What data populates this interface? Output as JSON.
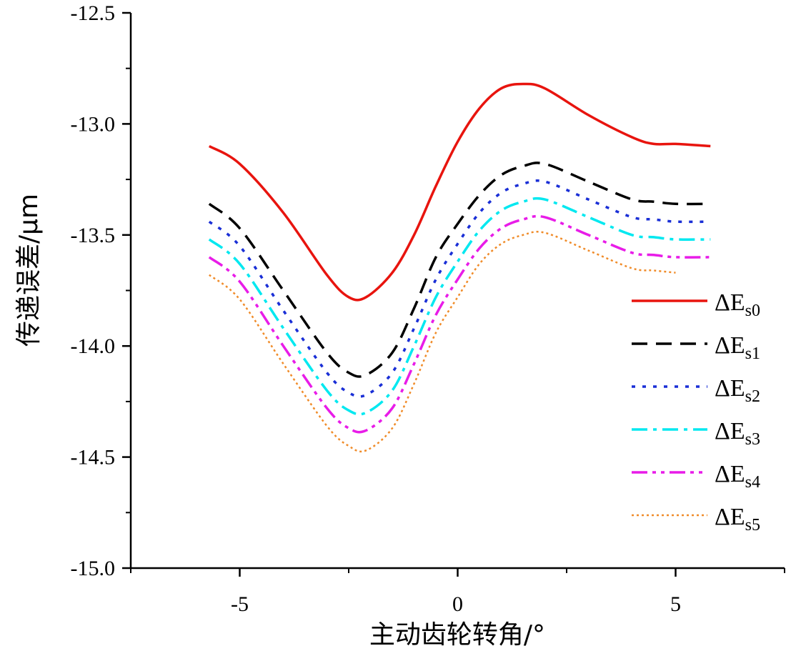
{
  "chart_data": {
    "type": "line",
    "xlabel": "主动齿轮转角/°",
    "ylabel": "传递误差/μm",
    "xlim": [
      -7.5,
      7.5
    ],
    "ylim": [
      -15.0,
      -12.5
    ],
    "x_ticks": [
      {
        "value": -5,
        "label": "-5"
      },
      {
        "value": 0,
        "label": "0"
      },
      {
        "value": 5,
        "label": "5"
      }
    ],
    "y_ticks": [
      {
        "value": -12.5,
        "label": "-12.5"
      },
      {
        "value": -13.0,
        "label": "-13.0"
      },
      {
        "value": -13.5,
        "label": "-13.5"
      },
      {
        "value": -14.0,
        "label": "-14.0"
      },
      {
        "value": -14.5,
        "label": "-14.5"
      },
      {
        "value": -15.0,
        "label": "-15.0"
      }
    ],
    "grid": false,
    "legend_position": "right",
    "x": [
      -5.7,
      -5.0,
      -4.0,
      -3.0,
      -2.5,
      -2.1,
      -1.5,
      -1.0,
      -0.5,
      0.0,
      0.5,
      1.0,
      1.5,
      2.0,
      3.0,
      4.0,
      4.5,
      5.0,
      5.8
    ],
    "series": [
      {
        "name": "ΔE",
        "subscript": "s0",
        "color": "#e8140e",
        "dash": "solid",
        "values": [
          -13.1,
          -13.18,
          -13.4,
          -13.68,
          -13.78,
          -13.78,
          -13.67,
          -13.5,
          -13.28,
          -13.08,
          -12.93,
          -12.84,
          -12.82,
          -12.84,
          -12.96,
          -13.06,
          -13.09,
          -13.09,
          -13.1
        ]
      },
      {
        "name": "ΔE",
        "subscript": "s1",
        "color": "#000000",
        "dash": "dash",
        "values": [
          -13.36,
          -13.47,
          -13.75,
          -14.03,
          -14.12,
          -14.13,
          -14.03,
          -13.83,
          -13.6,
          -13.45,
          -13.32,
          -13.23,
          -13.19,
          -13.18,
          -13.26,
          -13.34,
          -13.35,
          -13.36,
          -13.36
        ]
      },
      {
        "name": "ΔE",
        "subscript": "s2",
        "color": "#1a2fd6",
        "dash": "dot",
        "values": [
          -13.44,
          -13.55,
          -13.84,
          -14.12,
          -14.21,
          -14.22,
          -14.12,
          -13.92,
          -13.7,
          -13.54,
          -13.4,
          -13.31,
          -13.27,
          -13.26,
          -13.34,
          -13.42,
          -13.43,
          -13.44,
          -13.44
        ]
      },
      {
        "name": "ΔE",
        "subscript": "s3",
        "color": "#00e8f0",
        "dash": "dashdot",
        "values": [
          -13.52,
          -13.63,
          -13.92,
          -14.2,
          -14.29,
          -14.3,
          -14.2,
          -14.0,
          -13.78,
          -13.62,
          -13.48,
          -13.39,
          -13.35,
          -13.34,
          -13.42,
          -13.5,
          -13.51,
          -13.52,
          -13.52
        ]
      },
      {
        "name": "ΔE",
        "subscript": "s4",
        "color": "#e81ce8",
        "dash": "dashdotdot",
        "values": [
          -13.6,
          -13.71,
          -14.0,
          -14.28,
          -14.37,
          -14.38,
          -14.28,
          -14.08,
          -13.86,
          -13.7,
          -13.56,
          -13.47,
          -13.43,
          -13.42,
          -13.5,
          -13.58,
          -13.59,
          -13.6,
          -13.6
        ]
      },
      {
        "name": "ΔE",
        "subscript": "s5",
        "color": "#f08c2a",
        "dash": "shortdot",
        "values": [
          -13.68,
          -13.79,
          -14.08,
          -14.36,
          -14.45,
          -14.47,
          -14.37,
          -14.17,
          -13.94,
          -13.78,
          -13.63,
          -13.54,
          -13.5,
          -13.49,
          -13.57,
          -13.65,
          -13.66,
          -13.67,
          null
        ]
      }
    ]
  }
}
